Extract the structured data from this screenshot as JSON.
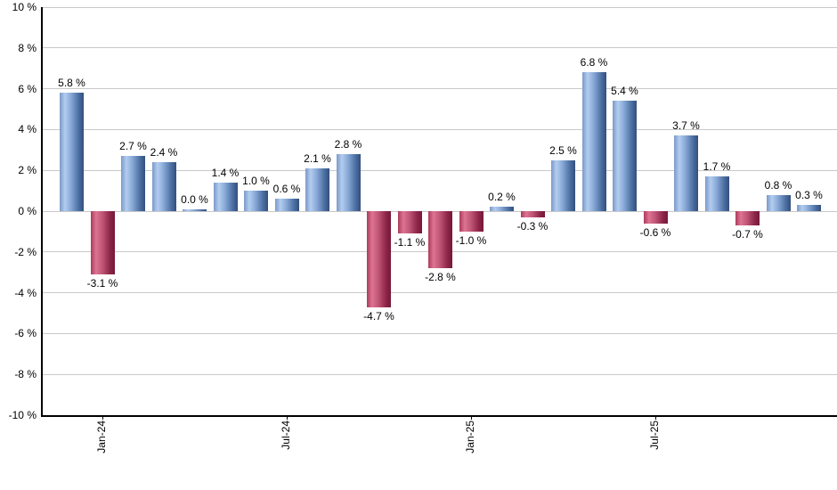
{
  "chart_data": {
    "type": "bar",
    "title": "",
    "xlabel": "",
    "ylabel": "",
    "grid": true,
    "legend": null,
    "ylim": [
      -10,
      10
    ],
    "y_ticks": [
      {
        "value": 10,
        "label": "10 %"
      },
      {
        "value": 8,
        "label": "8 %"
      },
      {
        "value": 6,
        "label": "6 %"
      },
      {
        "value": 4,
        "label": "4 %"
      },
      {
        "value": 2,
        "label": "2 %"
      },
      {
        "value": 0,
        "label": "0 %"
      },
      {
        "value": -2,
        "label": "-2 %"
      },
      {
        "value": -4,
        "label": "-4 %"
      },
      {
        "value": -6,
        "label": "-6 %"
      },
      {
        "value": -8,
        "label": "-8 %"
      },
      {
        "value": -10,
        "label": "-10 %"
      }
    ],
    "values": [
      5.8,
      -3.1,
      2.7,
      2.4,
      0.0,
      1.4,
      1.0,
      0.6,
      2.1,
      2.8,
      -4.7,
      -1.1,
      -2.8,
      -1.0,
      0.2,
      -0.3,
      2.5,
      6.8,
      5.4,
      -0.6,
      3.7,
      1.7,
      -0.7,
      0.8,
      0.3
    ],
    "bar_labels": [
      "5.8 %",
      "-3.1 %",
      "2.7 %",
      "2.4 %",
      "0.0 %",
      "1.4 %",
      "1.0 %",
      "0.6 %",
      "2.1 %",
      "2.8 %",
      "-4.7 %",
      "-1.1 %",
      "-2.8 %",
      "-1.0 %",
      "0.2 %",
      "-0.3 %",
      "2.5 %",
      "6.8 %",
      "5.4 %",
      "-0.6 %",
      "3.7 %",
      "1.7 %",
      "-0.7 %",
      "0.8 %",
      "0.3 %"
    ],
    "x_tick_labels": [
      {
        "label": "Jan-24",
        "bar_index": 1
      },
      {
        "label": "Jul-24",
        "bar_index": 7
      },
      {
        "label": "Jan-25",
        "bar_index": 13
      },
      {
        "label": "Jul-25",
        "bar_index": 19
      }
    ],
    "colors": {
      "positive_gradient": [
        "#7b99c8",
        "#b3cdf0",
        "#86a7d5",
        "#4a6da0",
        "#334f7c"
      ],
      "negative_gradient": [
        "#ad3a5c",
        "#dd7492",
        "#c05577",
        "#8c2547",
        "#76193a"
      ],
      "gridline": "#c9c9c9",
      "axis": "#000000",
      "text": "#000000",
      "background": "#ffffff"
    }
  }
}
